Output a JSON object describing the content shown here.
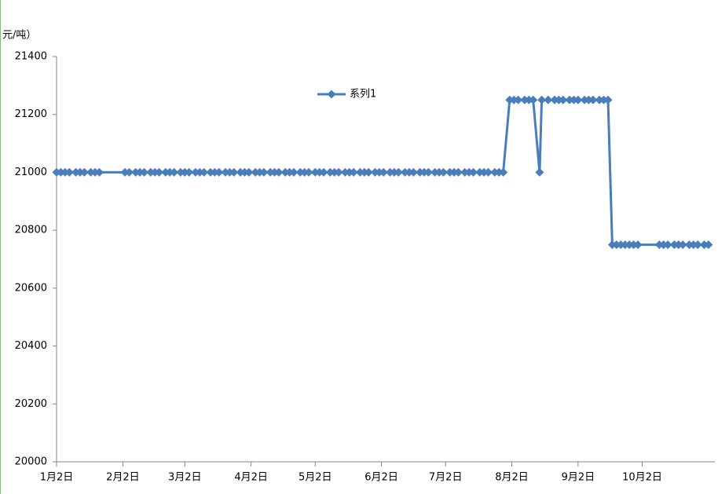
{
  "chart_data": {
    "type": "line",
    "y_axis_label": "元/吨）",
    "x": [
      "1月2日",
      "1月4日",
      "1月6日",
      "1月8日",
      "1月11日",
      "1月13日",
      "1月15日",
      "1月18日",
      "1月20日",
      "1月22日",
      "2月3日",
      "2月5日",
      "2月8日",
      "2月10日",
      "2月12日",
      "2月15日",
      "2月17日",
      "2月19日",
      "2月22日",
      "2月24日",
      "2月26日",
      "2月29日",
      "3月2日",
      "3月4日",
      "3月7日",
      "3月9日",
      "3月11日",
      "3月14日",
      "3月16日",
      "3月18日",
      "3月21日",
      "3月23日",
      "3月25日",
      "3月28日",
      "3月30日",
      "4月1日",
      "4月4日",
      "4月6日",
      "4月8日",
      "4月11日",
      "4月13日",
      "4月15日",
      "4月18日",
      "4月20日",
      "4月22日",
      "4月25日",
      "4月27日",
      "4月29日",
      "5月2日",
      "5月4日",
      "5月6日",
      "5月9日",
      "5月11日",
      "5月13日",
      "5月16日",
      "5月18日",
      "5月20日",
      "5月23日",
      "5月25日",
      "5月27日",
      "5月30日",
      "6月1日",
      "6月3日",
      "6月6日",
      "6月8日",
      "6月10日",
      "6月13日",
      "6月15日",
      "6月17日",
      "6月20日",
      "6月22日",
      "6月24日",
      "6月27日",
      "6月29日",
      "7月1日",
      "7月4日",
      "7月6日",
      "7月8日",
      "7月11日",
      "7月13日",
      "7月15日",
      "7月18日",
      "7月20日",
      "7月22日",
      "7月25日",
      "7月27日",
      "7月29日",
      "8月1日",
      "8月3日",
      "8月5日",
      "8月8日",
      "8月10日",
      "8月12日",
      "8月15日",
      "8月16日",
      "8月19日",
      "8月22日",
      "8月24日",
      "8月26日",
      "8月29日",
      "8月31日",
      "9月2日",
      "9月5日",
      "9月7日",
      "9月9日",
      "9月12日",
      "9月14日",
      "9月16日",
      "9月18日",
      "9月20日",
      "9月22日",
      "9月24日",
      "9月26日",
      "9月28日",
      "9月30日",
      "10月10日",
      "10月12日",
      "10月14日",
      "10月17日",
      "10月19日",
      "10月21日",
      "10月24日",
      "10月26日",
      "10月28日",
      "10月31日",
      "11月2日"
    ],
    "series": [
      {
        "name": "系列1",
        "color": "#4a7ebb",
        "values": [
          21000,
          21000,
          21000,
          21000,
          21000,
          21000,
          21000,
          21000,
          21000,
          21000,
          21000,
          21000,
          21000,
          21000,
          21000,
          21000,
          21000,
          21000,
          21000,
          21000,
          21000,
          21000,
          21000,
          21000,
          21000,
          21000,
          21000,
          21000,
          21000,
          21000,
          21000,
          21000,
          21000,
          21000,
          21000,
          21000,
          21000,
          21000,
          21000,
          21000,
          21000,
          21000,
          21000,
          21000,
          21000,
          21000,
          21000,
          21000,
          21000,
          21000,
          21000,
          21000,
          21000,
          21000,
          21000,
          21000,
          21000,
          21000,
          21000,
          21000,
          21000,
          21000,
          21000,
          21000,
          21000,
          21000,
          21000,
          21000,
          21000,
          21000,
          21000,
          21000,
          21000,
          21000,
          21000,
          21000,
          21000,
          21000,
          21000,
          21000,
          21000,
          21000,
          21000,
          21000,
          21000,
          21000,
          21000,
          21250,
          21250,
          21250,
          21250,
          21250,
          21250,
          21000,
          21250,
          21250,
          21250,
          21250,
          21250,
          21250,
          21250,
          21250,
          21250,
          21250,
          21250,
          21250,
          21250,
          21250,
          20750,
          20750,
          20750,
          20750,
          20750,
          20750,
          20750,
          20750,
          20750,
          20750,
          20750,
          20750,
          20750,
          20750,
          20750,
          20750,
          20750,
          20750
        ]
      }
    ],
    "xlim": [
      "1月2日",
      "11月5日"
    ],
    "xticks": [
      "1月2日",
      "2月2日",
      "3月2日",
      "4月2日",
      "5月2日",
      "6月2日",
      "7月2日",
      "8月2日",
      "9月2日",
      "10月2日"
    ],
    "ylim": [
      20000,
      21400
    ],
    "yticks": [
      20000,
      20200,
      20400,
      20600,
      20800,
      21000,
      21200,
      21400
    ],
    "grid": false
  }
}
